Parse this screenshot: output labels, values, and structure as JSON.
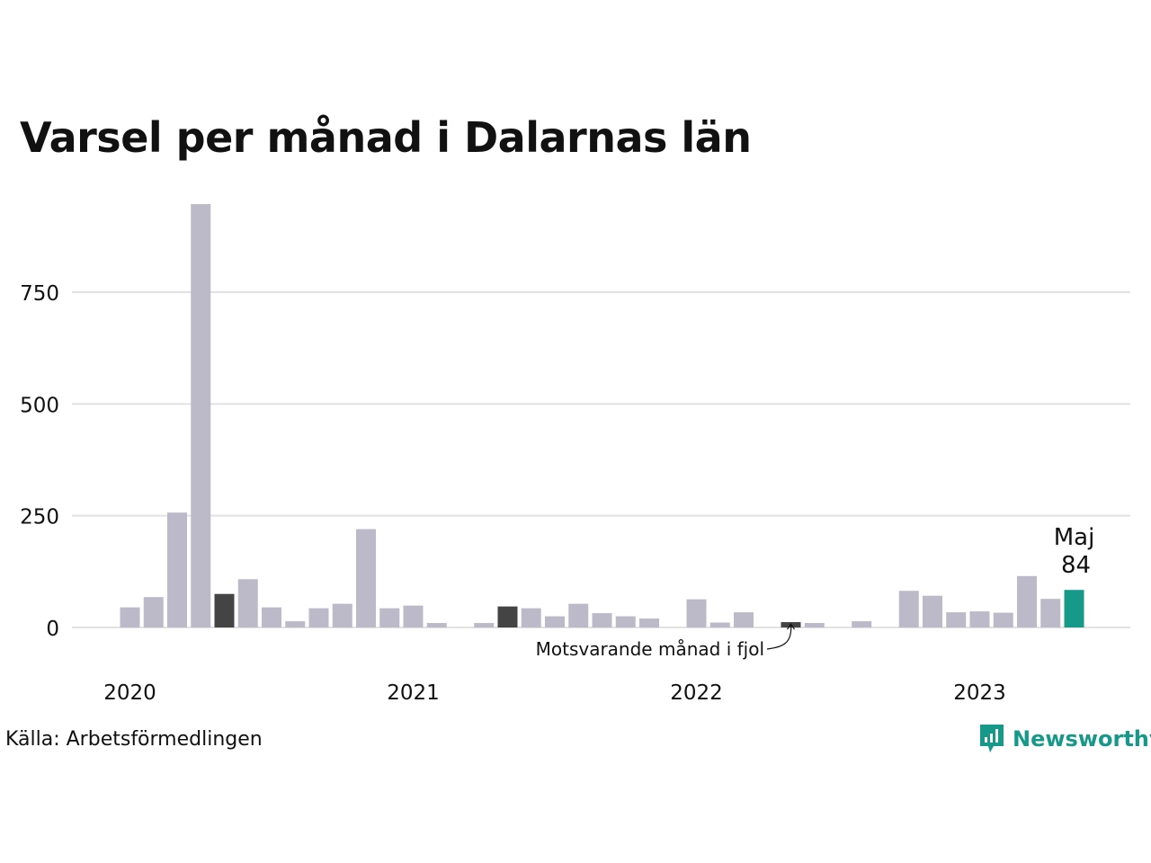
{
  "chart_data": {
    "type": "bar",
    "title": "Varsel per månad i Dalarnas län",
    "xlabel": "",
    "ylabel": "",
    "ylim": [
      0,
      960
    ],
    "yticks": [
      0,
      250,
      500,
      750
    ],
    "ytick_labels": [
      "0",
      "250",
      "500",
      "750"
    ],
    "year_labels": [
      "2020",
      "2021",
      "2022",
      "2023"
    ],
    "grid": true,
    "start": "2020-01",
    "values": [
      45,
      68,
      257,
      947,
      75,
      108,
      45,
      14,
      43,
      53,
      220,
      43,
      49,
      10,
      0,
      10,
      47,
      43,
      25,
      53,
      32,
      25,
      20,
      0,
      63,
      11,
      34,
      0,
      12,
      10,
      0,
      14,
      0,
      82,
      71,
      34,
      36,
      33,
      115,
      64,
      84
    ],
    "highlights": {
      "comparison_indices": [
        4,
        16,
        28
      ],
      "current_index": 40
    },
    "colors": {
      "default": "#bcbac8",
      "comparison": "#444444",
      "current": "#17998a",
      "grid": "#e2e2e2"
    },
    "annotations": {
      "current_month": "Maj",
      "current_value": "84",
      "comparison_note": "Motsvarande månad i fjol"
    }
  },
  "footer": {
    "source": "Källa: Arbetsförmedlingen",
    "brand": "Newsworthy",
    "brand_icon": "newsworthy-logo-icon"
  }
}
